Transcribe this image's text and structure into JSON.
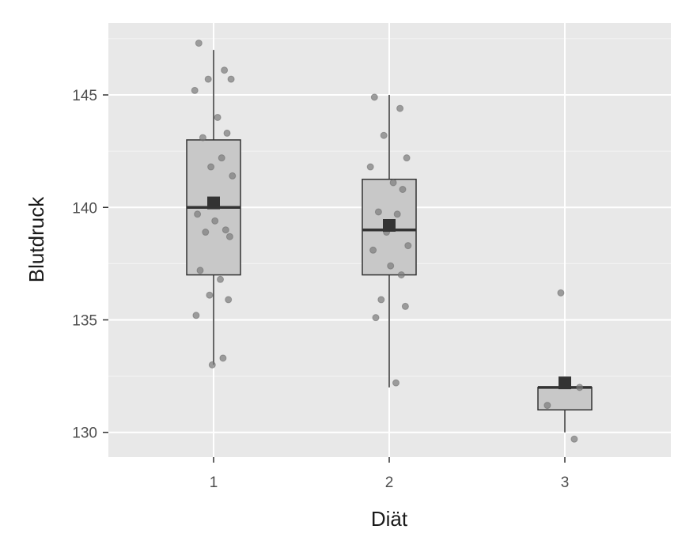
{
  "chart_data": {
    "type": "boxplot",
    "xlabel": "Diät",
    "ylabel": "Blutdruck",
    "categories": [
      "1",
      "2",
      "3"
    ],
    "ylim": [
      128.9,
      148.2
    ],
    "yticks": [
      130,
      135,
      140,
      145
    ],
    "grid": true,
    "legend": "none",
    "colors": {
      "panel": "#e8e8e8",
      "grid_major": "#ffffff",
      "box_fill": "#c8c8c8",
      "box_stroke": "#333333",
      "point": "#7a7a7a",
      "mean_marker": "#333333",
      "text": "#4d4d4d"
    },
    "boxes": [
      {
        "category": "1",
        "whisker_low": 133,
        "q1": 137,
        "median": 140,
        "q3": 143,
        "whisker_high": 147,
        "mean": 140.2
      },
      {
        "category": "2",
        "whisker_low": 132,
        "q1": 137,
        "median": 139,
        "q3": 141.25,
        "whisker_high": 145,
        "mean": 139.2
      },
      {
        "category": "3",
        "whisker_low": 130,
        "q1": 131,
        "median": 132,
        "q3": 132,
        "whisker_high": 132,
        "mean": 132.2
      }
    ],
    "points": [
      {
        "category": "1",
        "values": [
          147.3,
          146.1,
          145.7,
          145.7,
          145.2,
          144.0,
          143.3,
          143.1,
          142.2,
          141.8,
          141.4,
          139.7,
          139.4,
          139.0,
          138.9,
          138.7,
          137.2,
          136.8,
          136.1,
          135.9,
          135.2,
          133.3,
          133.0
        ]
      },
      {
        "category": "2",
        "values": [
          144.9,
          144.4,
          143.2,
          142.2,
          141.8,
          141.1,
          140.8,
          139.8,
          139.7,
          138.9,
          138.3,
          138.1,
          137.4,
          137.0,
          135.9,
          135.6,
          135.1,
          132.2
        ]
      },
      {
        "category": "3",
        "values": [
          136.2,
          132.0,
          131.2,
          129.7
        ]
      }
    ]
  }
}
